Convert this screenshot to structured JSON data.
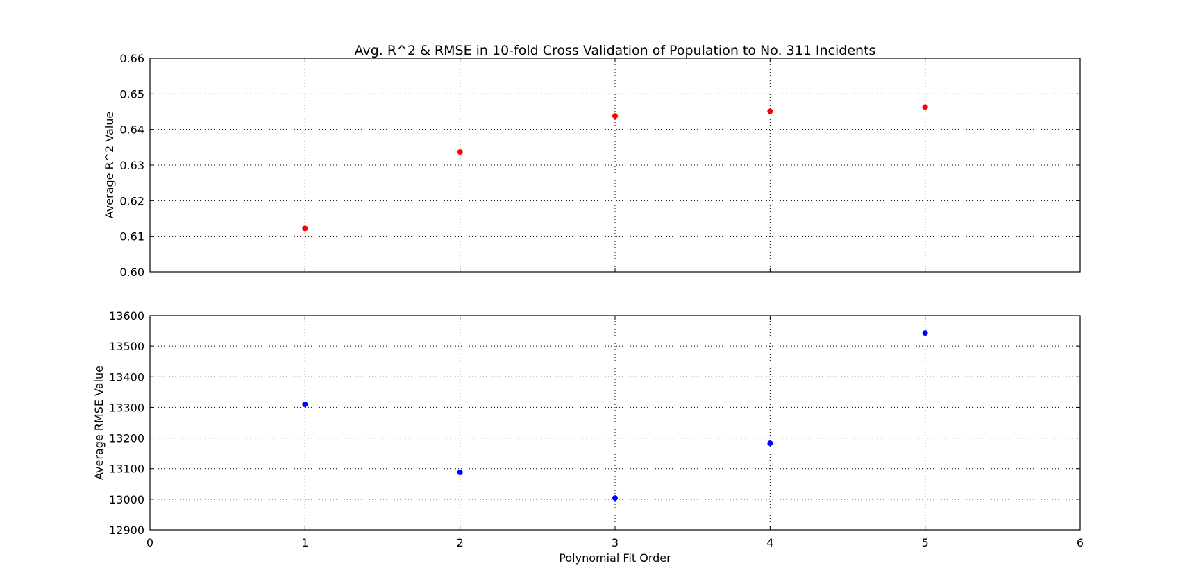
{
  "chart_data": [
    {
      "type": "scatter",
      "title": "Avg. R^2 & RMSE in 10-fold Cross Validation of Population to No. 311 Incidents",
      "xlabel": "",
      "ylabel": "Average R^2 Value",
      "xlim": [
        0,
        6
      ],
      "ylim": [
        0.6,
        0.66
      ],
      "xticks": [],
      "yticks": [
        "0.60",
        "0.61",
        "0.62",
        "0.63",
        "0.64",
        "0.65",
        "0.66"
      ],
      "grid": true,
      "color": "#ff0000",
      "x": [
        1,
        2,
        3,
        4,
        5
      ],
      "y": [
        0.6122,
        0.6337,
        0.6438,
        0.6451,
        0.6463
      ]
    },
    {
      "type": "scatter",
      "title": "",
      "xlabel": "Polynomial Fit Order",
      "ylabel": "Average RMSE Value",
      "xlim": [
        0,
        6
      ],
      "ylim": [
        12900,
        13600
      ],
      "xticks": [
        "0",
        "1",
        "2",
        "3",
        "4",
        "5",
        "6"
      ],
      "yticks": [
        "12900",
        "13000",
        "13100",
        "13200",
        "13300",
        "13400",
        "13500",
        "13600"
      ],
      "grid": true,
      "color": "#0000ff",
      "x": [
        1,
        2,
        3,
        4,
        5
      ],
      "y": [
        13310,
        13088,
        13004,
        13183,
        13543
      ]
    }
  ]
}
